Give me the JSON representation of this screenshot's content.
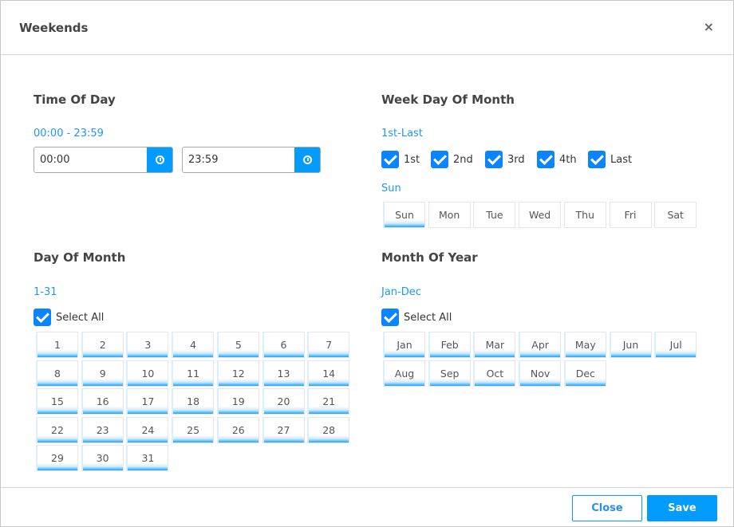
{
  "dialog": {
    "title": "Weekends",
    "close_icon": "×"
  },
  "time_of_day": {
    "title": "Time Of Day",
    "range": "00:00 - 23:59",
    "start": "00:00",
    "end": "23:59"
  },
  "week_day_of_month": {
    "title": "Week Day Of Month",
    "range": "1st-Last",
    "weeks": [
      {
        "label": "1st",
        "checked": true
      },
      {
        "label": "2nd",
        "checked": true
      },
      {
        "label": "3rd",
        "checked": true
      },
      {
        "label": "4th",
        "checked": true
      },
      {
        "label": "Last",
        "checked": true
      }
    ],
    "selected_days_label": "Sun",
    "days": [
      {
        "label": "Sun",
        "selected": true
      },
      {
        "label": "Mon",
        "selected": false
      },
      {
        "label": "Tue",
        "selected": false
      },
      {
        "label": "Wed",
        "selected": false
      },
      {
        "label": "Thu",
        "selected": false
      },
      {
        "label": "Fri",
        "selected": false
      },
      {
        "label": "Sat",
        "selected": false
      }
    ]
  },
  "day_of_month": {
    "title": "Day Of Month",
    "range": "1-31",
    "select_all": "Select All",
    "select_all_checked": true,
    "days": [
      "1",
      "2",
      "3",
      "4",
      "5",
      "6",
      "7",
      "8",
      "9",
      "10",
      "11",
      "12",
      "13",
      "14",
      "15",
      "16",
      "17",
      "18",
      "19",
      "20",
      "21",
      "22",
      "23",
      "24",
      "25",
      "26",
      "27",
      "28",
      "29",
      "30",
      "31"
    ],
    "all_selected": true
  },
  "month_of_year": {
    "title": "Month Of Year",
    "range": "Jan-Dec",
    "select_all": "Select All",
    "select_all_checked": true,
    "months": [
      "Jan",
      "Feb",
      "Mar",
      "Apr",
      "May",
      "Jun",
      "Jul",
      "Aug",
      "Sep",
      "Oct",
      "Nov",
      "Dec"
    ],
    "all_selected": true
  },
  "footer": {
    "close_label": "Close",
    "save_label": "Save"
  },
  "colors": {
    "accent": "#039bfc",
    "label_blue": "#2196f3",
    "checkbox": "#0a84ff"
  }
}
